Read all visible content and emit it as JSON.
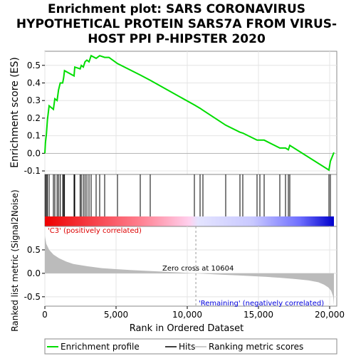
{
  "chart_data": {
    "type": "line",
    "title_lines": [
      "Enrichment plot: SARS CORONAVIRUS",
      "HYPOTHETICAL PROTEIN SARS7A FROM VIRUS-",
      "HOST PPI P-HIPSTER 2020"
    ],
    "xlabel": "Rank in Ordered Dataset",
    "ylabel_top": "Enrichment score (ES)",
    "ylabel_bottom": "Ranked list metric (Signal2Noise)",
    "xlim": [
      0,
      20500
    ],
    "x_ticks": [
      0,
      5000,
      10000,
      15000,
      20000
    ],
    "x_tick_labels": [
      "0",
      "5,000",
      "10,000",
      "15,000",
      "20,000"
    ],
    "es_ylim": [
      -0.12,
      0.58
    ],
    "es_ticks": [
      -0.1,
      0.0,
      0.1,
      0.2,
      0.3,
      0.4,
      0.5
    ],
    "es_tick_labels": [
      "-0.1",
      "0.0",
      "0.1",
      "0.2",
      "0.3",
      "0.4",
      "0.5"
    ],
    "metric_ylim": [
      -0.7,
      1.0
    ],
    "metric_ticks": [
      -0.5,
      0.0,
      0.5
    ],
    "metric_tick_labels": [
      "-0.5",
      "0.0",
      "0.5"
    ],
    "grid": true,
    "positive_label": "'C3' (positively correlated)",
    "negative_label": "'Remaining' (negatively correlated)",
    "zero_cross_label": "Zero cross at 10604",
    "zero_cross": 10604,
    "n_genes": 20300,
    "legend": [
      "Enrichment profile",
      "Hits",
      "Ranking metric scores"
    ],
    "legend_position": "bottom",
    "colors": {
      "es_line": "#00dd00",
      "positive": "#dd0000",
      "negative": "#0000dd",
      "metric_fill": "#bbbbbb",
      "hits": "#000000"
    },
    "es_curve": {
      "x": [
        0,
        40,
        110,
        180,
        300,
        600,
        700,
        860,
        960,
        1080,
        1250,
        1320,
        1380,
        2050,
        2100,
        2480,
        2560,
        2700,
        2820,
        2950,
        3100,
        3250,
        3600,
        3850,
        4200,
        4500,
        5100,
        6700,
        7400,
        10500,
        10900,
        11100,
        12700,
        13700,
        13900,
        14900,
        15100,
        15400,
        16500,
        16900,
        17100,
        17200,
        19950,
        20050,
        20300
      ],
      "y": [
        0.0,
        0.06,
        0.11,
        0.19,
        0.27,
        0.25,
        0.31,
        0.3,
        0.36,
        0.4,
        0.4,
        0.43,
        0.47,
        0.44,
        0.49,
        0.48,
        0.5,
        0.49,
        0.52,
        0.53,
        0.52,
        0.555,
        0.54,
        0.555,
        0.545,
        0.545,
        0.51,
        0.445,
        0.415,
        0.275,
        0.256,
        0.245,
        0.16,
        0.12,
        0.115,
        0.075,
        0.075,
        0.075,
        0.03,
        0.03,
        0.02,
        0.045,
        -0.095,
        -0.045,
        0.005
      ]
    },
    "hits": [
      40,
      110,
      180,
      300,
      600,
      700,
      860,
      960,
      1080,
      1250,
      1320,
      1380,
      2050,
      2100,
      2480,
      2560,
      2700,
      2820,
      2950,
      3100,
      3250,
      3600,
      3850,
      4200,
      5100,
      6700,
      7400,
      10500,
      10900,
      11100,
      12700,
      13700,
      13900,
      14900,
      15100,
      15400,
      16500,
      16900,
      17100,
      17200,
      19950,
      20050
    ],
    "metric_curve": {
      "x": [
        0,
        100,
        300,
        600,
        1000,
        1500,
        2000,
        3000,
        4000,
        5000,
        6000,
        7000,
        8000,
        9000,
        10000,
        10604,
        11500,
        12500,
        13500,
        14500,
        15500,
        16500,
        17500,
        18500,
        19200,
        19600,
        19900,
        20100,
        20250,
        20300
      ],
      "y": [
        0.8,
        0.63,
        0.5,
        0.4,
        0.32,
        0.25,
        0.2,
        0.15,
        0.11,
        0.09,
        0.07,
        0.055,
        0.04,
        0.025,
        0.01,
        0.0,
        -0.015,
        -0.03,
        -0.045,
        -0.06,
        -0.075,
        -0.095,
        -0.12,
        -0.15,
        -0.19,
        -0.24,
        -0.3,
        -0.37,
        -0.5,
        -0.68
      ]
    }
  }
}
